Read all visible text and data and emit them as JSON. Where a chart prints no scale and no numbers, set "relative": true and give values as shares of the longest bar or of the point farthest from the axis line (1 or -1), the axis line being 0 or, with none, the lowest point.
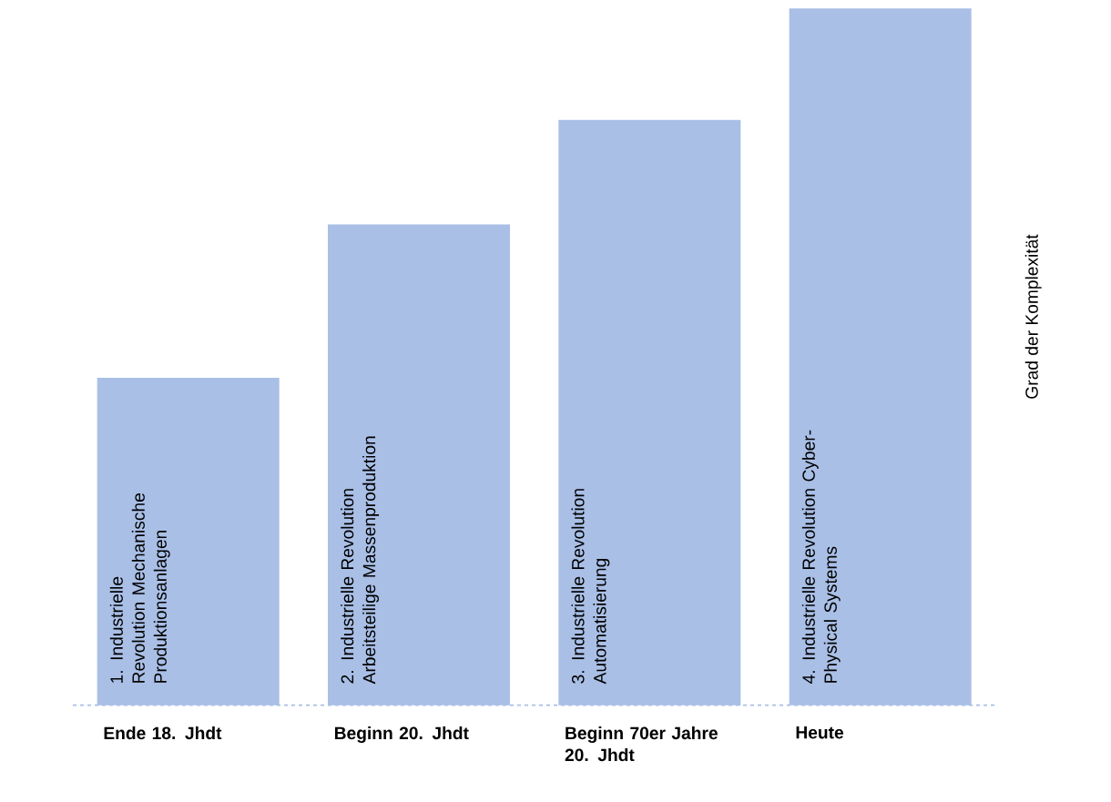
{
  "chart_data": {
    "type": "bar",
    "relative": true,
    "categories": [
      "Ende 18. Jhdt",
      "Beginn 20. Jhdt",
      "Beginn 70er Jahre 20. Jhdt",
      "Heute"
    ],
    "values": [
      0.47,
      0.69,
      0.84,
      1
    ],
    "color": "#a9bfe6",
    "ylabel": "Grad der Komplexität",
    "annotations": [
      "1. Industrielle Revolution Mechanische Produktionsanlagen",
      "2. Industrielle Revolution Arbeitsteilige Massenproduktion",
      "3. Industrielle Revolution Automatisierung",
      "4. Industrielle Revolution Cyber-Physical Systems"
    ]
  }
}
